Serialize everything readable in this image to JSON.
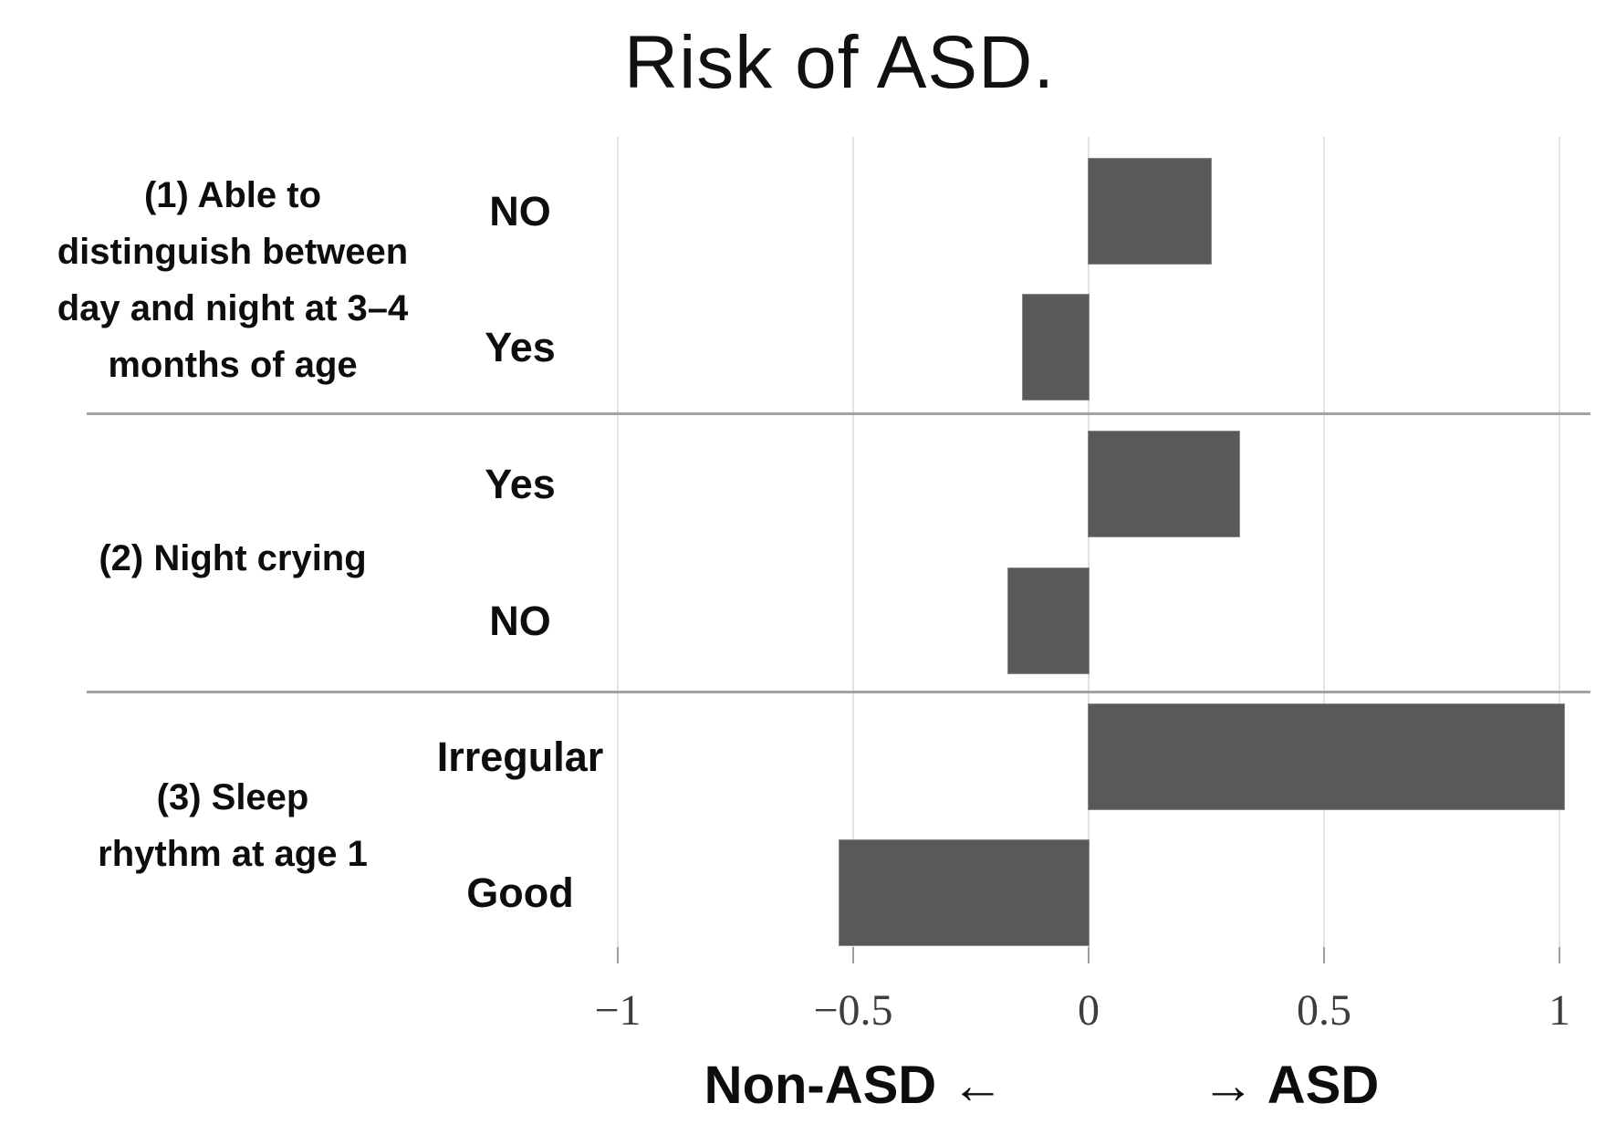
{
  "title": "Risk of ASD.",
  "axis_caption": {
    "left": "Non-ASD ←",
    "right": "→ ASD"
  },
  "chart_data": {
    "type": "bar",
    "orientation": "horizontal",
    "title": "Risk of ASD.",
    "xlim": [
      -1,
      1
    ],
    "x_ticks": [
      -1,
      -0.5,
      0,
      0.5,
      1
    ],
    "x_tick_labels": [
      "−1",
      "−0.5",
      "0",
      "0.5",
      "1"
    ],
    "x_axis_note_negative": "Non-ASD ←",
    "x_axis_note_positive": "→ ASD",
    "grid": "vertical-only",
    "bar_color": "#595959",
    "gridline_color": "#e2e2e2",
    "divider_color": "#a3a3a3",
    "groups": [
      {
        "label_lines": [
          "(1) Able to",
          "distinguish between",
          "day and night at 3–4",
          "months of age"
        ],
        "bars": [
          {
            "category": "NO",
            "value": 0.26
          },
          {
            "category": "Yes",
            "value": -0.14
          }
        ]
      },
      {
        "label_lines": [
          "(2) Night crying"
        ],
        "bars": [
          {
            "category": "Yes",
            "value": 0.32
          },
          {
            "category": "NO",
            "value": -0.17
          }
        ]
      },
      {
        "label_lines": [
          "(3) Sleep",
          "rhythm at age 1"
        ],
        "bars": [
          {
            "category": "Irregular",
            "value": 1.01
          },
          {
            "category": "Good",
            "value": -0.53
          }
        ]
      }
    ]
  }
}
